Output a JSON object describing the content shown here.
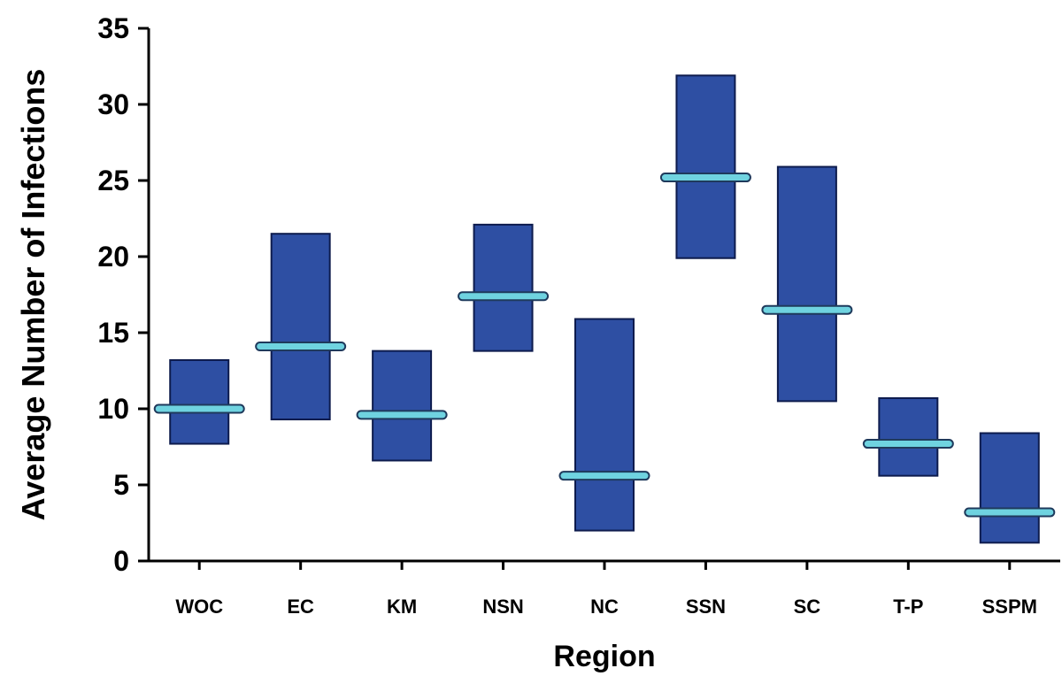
{
  "chart_data": {
    "type": "bar",
    "subtype": "floating-range-with-mean",
    "title": "",
    "xlabel": "Region",
    "ylabel": "Average Number of Infections",
    "ylim": [
      0,
      35
    ],
    "yticks": [
      0,
      5,
      10,
      15,
      20,
      25,
      30,
      35
    ],
    "grid": false,
    "categories": [
      "WOC",
      "EC",
      "KM",
      "NSN",
      "NC",
      "SSN",
      "SC",
      "T-P",
      "SSPM"
    ],
    "low": [
      7.7,
      9.3,
      6.6,
      13.8,
      2.0,
      19.9,
      10.5,
      5.6,
      1.2
    ],
    "high": [
      13.2,
      21.5,
      13.8,
      22.1,
      15.9,
      31.9,
      25.9,
      10.7,
      8.4
    ],
    "mean": [
      10.0,
      14.1,
      9.6,
      17.4,
      5.6,
      25.2,
      16.5,
      7.7,
      3.2
    ],
    "colors": {
      "bar": "#2e4fa3",
      "bar_edge": "#0d1b4d",
      "mean_line": "#6fd3e0",
      "mean_edge": "#1f3a5c"
    }
  }
}
